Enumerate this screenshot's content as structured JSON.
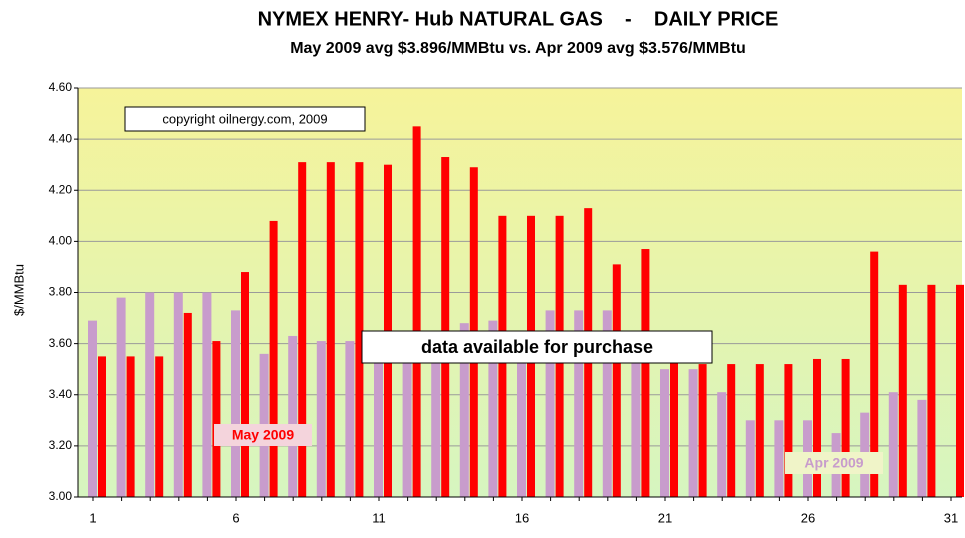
{
  "chart_data": {
    "type": "bar",
    "title": "NYMEX HENRY- Hub NATURAL GAS    -    DAILY PRICE",
    "subtitle": "May 2009 avg $3.896/MMBtu vs. Apr 2009 avg $3.576/MMBtu",
    "y_label": "$/MMBtu",
    "annotations": [
      "copyright oilnergy.com, 2009",
      "data available for purchase"
    ],
    "categories": [
      "1",
      null,
      null,
      null,
      null,
      "6",
      null,
      null,
      null,
      null,
      "11",
      null,
      null,
      null,
      null,
      "16",
      null,
      null,
      null,
      null,
      "21",
      null,
      null,
      null,
      null,
      "26",
      null,
      null,
      null,
      null,
      "31"
    ],
    "series": [
      {
        "name": "Apr 2009",
        "color": "#c89ccc",
        "values": [
          3.69,
          3.78,
          3.8,
          3.8,
          3.8,
          3.73,
          3.56,
          3.63,
          3.61,
          3.61,
          3.55,
          3.55,
          3.6,
          3.68,
          3.69,
          3.6,
          3.73,
          3.73,
          3.73,
          3.6,
          3.5,
          3.5,
          3.41,
          3.3,
          3.3,
          3.3,
          3.25,
          3.33,
          3.41,
          3.38,
          null
        ]
      },
      {
        "name": "May 2009",
        "color": "#ff0000",
        "values": [
          3.55,
          3.55,
          3.55,
          3.72,
          3.61,
          3.88,
          4.08,
          4.31,
          4.31,
          4.31,
          4.3,
          4.45,
          4.33,
          4.29,
          4.1,
          4.1,
          4.1,
          4.13,
          3.91,
          3.97,
          3.55,
          3.52,
          3.52,
          3.52,
          3.52,
          3.54,
          3.54,
          3.96,
          3.83,
          3.83,
          3.83
        ]
      }
    ],
    "ylim": [
      3.0,
      4.6
    ],
    "yticks": [
      {
        "value": 3.0,
        "label": "3.00"
      },
      {
        "value": 3.2,
        "label": "3.20"
      },
      {
        "value": 3.4,
        "label": "3.40"
      },
      {
        "value": 3.6,
        "label": "3.60"
      },
      {
        "value": 3.8,
        "label": "3.80"
      },
      {
        "value": 4.0,
        "label": "4.00"
      },
      {
        "value": 4.2,
        "label": "4.20"
      },
      {
        "value": 4.4,
        "label": "4.40"
      },
      {
        "value": 4.6,
        "label": "4.60"
      }
    ],
    "grid": true
  }
}
